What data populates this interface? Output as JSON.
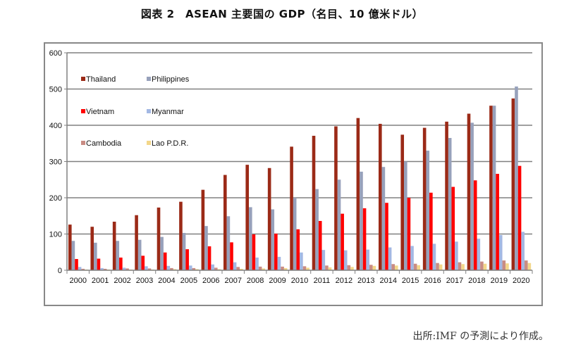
{
  "title": "図表 2　ASEAN 主要国の GDP（名目、10 億米ドル）",
  "source": "出所:IMF の予測により作成。",
  "chart_data": {
    "type": "bar",
    "title": "図表 2　ASEAN 主要国の GDP（名目、10 億米ドル）",
    "xlabel": "",
    "ylabel": "",
    "ylim": [
      0,
      600
    ],
    "yticks": [
      0,
      100,
      200,
      300,
      400,
      500,
      600
    ],
    "grid": true,
    "legend_placement": "top-left (inside plot, 2 columns)",
    "categories": [
      "2000",
      "2001",
      "2002",
      "2003",
      "2004",
      "2005",
      "2006",
      "2007",
      "2008",
      "2009",
      "2010",
      "2011",
      "2012",
      "2013",
      "2014",
      "2015",
      "2016",
      "2017",
      "2018",
      "2019",
      "2020"
    ],
    "series": [
      {
        "name": "Thailand",
        "color": "#9b2a17",
        "values": [
          126,
          120,
          134,
          152,
          173,
          189,
          222,
          263,
          291,
          282,
          341,
          371,
          397,
          420,
          404,
          374,
          393,
          410,
          432,
          454,
          474
        ]
      },
      {
        "name": "Philippines",
        "color": "#97a1bb",
        "values": [
          81,
          76,
          81,
          84,
          92,
          103,
          122,
          149,
          174,
          168,
          200,
          224,
          250,
          272,
          285,
          300,
          330,
          365,
          407,
          454,
          507
        ]
      },
      {
        "name": "Vietnam",
        "color": "#ff0000",
        "values": [
          31,
          32,
          35,
          40,
          49,
          58,
          66,
          77,
          99,
          101,
          113,
          136,
          156,
          171,
          186,
          200,
          214,
          230,
          248,
          266,
          288
        ]
      },
      {
        "name": "Myanmar",
        "color": "#a3b8e3",
        "values": [
          9,
          6,
          7,
          11,
          12,
          13,
          16,
          22,
          35,
          37,
          49,
          56,
          55,
          57,
          63,
          67,
          73,
          79,
          87,
          97,
          106
        ]
      },
      {
        "name": "Cambodia",
        "color": "#c98c84",
        "values": [
          4,
          4,
          5,
          5,
          6,
          6,
          7,
          9,
          10,
          10,
          11,
          13,
          14,
          15,
          17,
          18,
          20,
          22,
          24,
          27,
          27
        ]
      },
      {
        "name": "Lao P.D.R.",
        "color": "#f3d78a",
        "values": [
          2,
          2,
          2,
          2,
          3,
          3,
          3,
          4,
          5,
          6,
          7,
          8,
          9,
          12,
          13,
          14,
          16,
          17,
          18,
          19,
          20
        ]
      }
    ]
  }
}
